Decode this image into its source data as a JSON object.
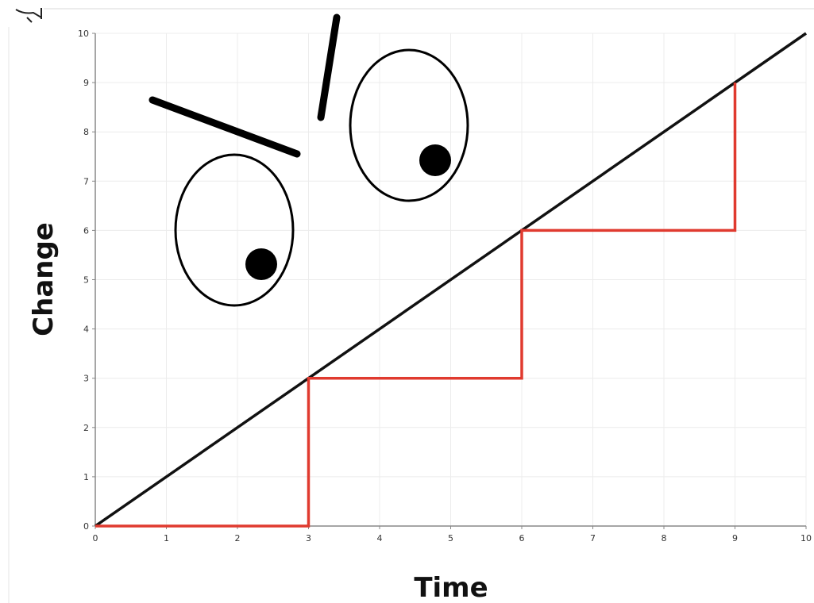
{
  "chart_data": {
    "type": "line",
    "xlabel": "Time",
    "ylabel": "Change",
    "xlim": [
      0,
      10
    ],
    "ylim": [
      0,
      10
    ],
    "xticks": [
      "0",
      "1",
      "2",
      "3",
      "4",
      "5",
      "6",
      "7",
      "8",
      "9",
      "10"
    ],
    "yticks": [
      "0",
      "1",
      "2",
      "3",
      "4",
      "5",
      "6",
      "7",
      "8",
      "9",
      "10"
    ],
    "grid": true,
    "legend": "none",
    "series": [
      {
        "color": "#111111",
        "x": [
          0,
          10
        ],
        "y": [
          0,
          10
        ]
      },
      {
        "color": "#e03a2f",
        "step": true,
        "x": [
          0,
          3,
          3,
          6,
          6,
          9,
          9
        ],
        "y": [
          0,
          0,
          3,
          3,
          6,
          6,
          9
        ]
      }
    ]
  },
  "decorations": {
    "face": "cartoon-angry-eyes",
    "stroke_color": "#000000"
  }
}
